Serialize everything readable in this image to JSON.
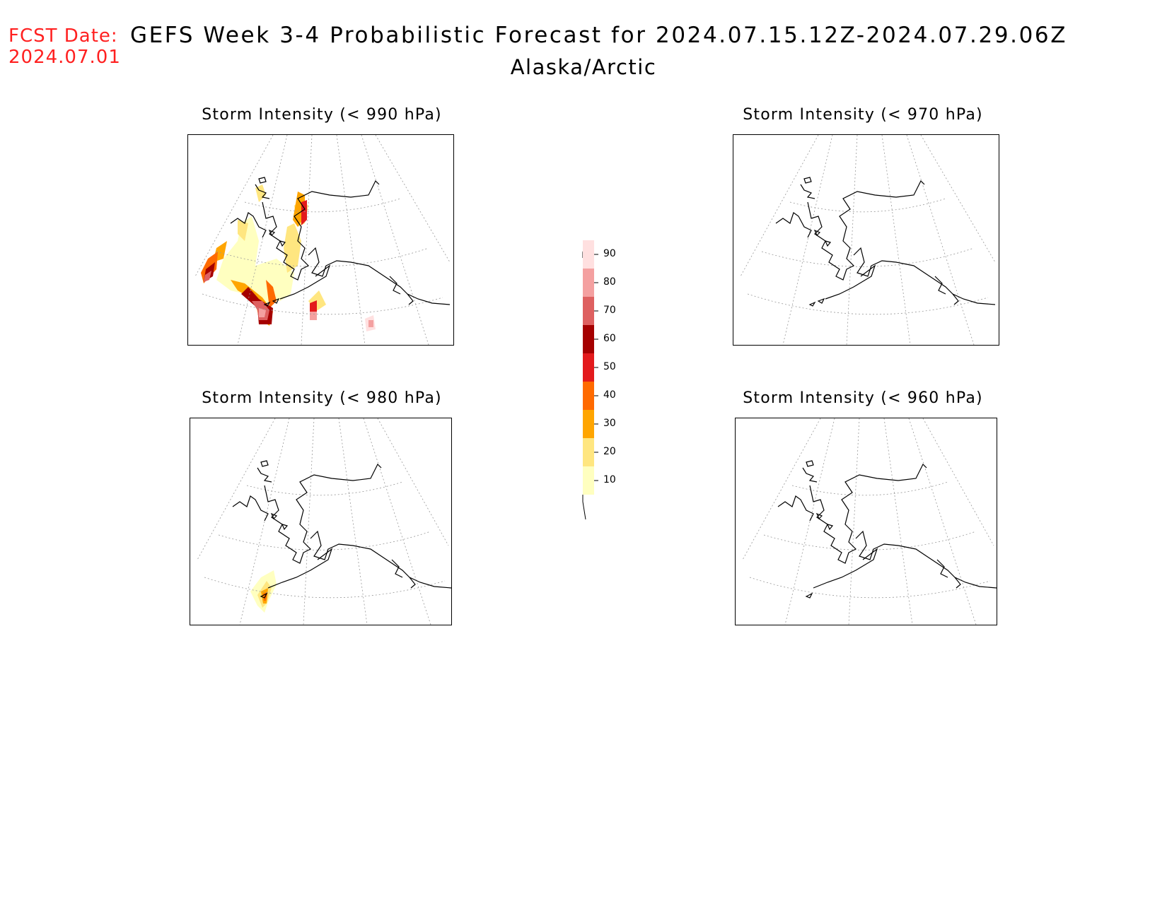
{
  "header": {
    "fcst_label": "FCST Date:",
    "fcst_date": "2024.07.01",
    "title": "GEFS Week 3-4 Probabilistic Forecast for 2024.07.15.12Z-2024.07.29.06Z",
    "region": "Alaska/Arctic"
  },
  "panels": [
    {
      "id": "p990",
      "title": "Storm Intensity (< 990 hPa)"
    },
    {
      "id": "p970",
      "title": "Storm Intensity (< 970 hPa)"
    },
    {
      "id": "p980",
      "title": "Storm Intensity (< 980 hPa)"
    },
    {
      "id": "p960",
      "title": "Storm Intensity (< 960 hPa)"
    }
  ],
  "colorbar": {
    "levels": [
      "10",
      "20",
      "30",
      "40",
      "50",
      "60",
      "70",
      "80",
      "90"
    ],
    "colors": [
      "#ffffc0",
      "#ffe680",
      "#ffa500",
      "#ff6a00",
      "#e31a1c",
      "#a50000",
      "#de6060",
      "#f4a0a0",
      "#ffe0e0"
    ]
  }
}
